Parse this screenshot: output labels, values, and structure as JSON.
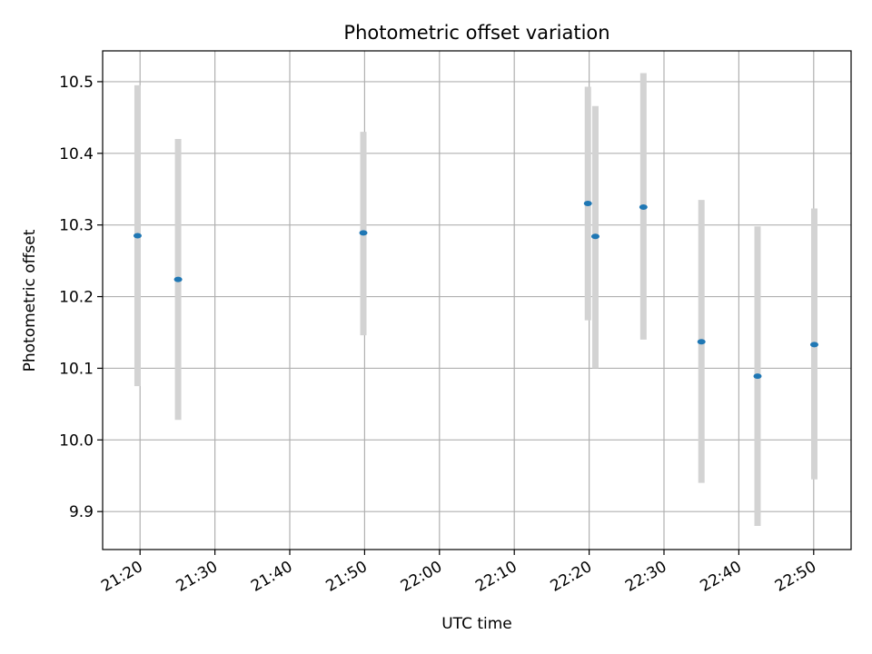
{
  "chart_data": {
    "type": "scatter",
    "title": "Photometric offset variation",
    "xlabel": "UTC time",
    "ylabel": "Photometric offset",
    "x_unit": "UTC time of day (HH:MM)",
    "xlim": [
      "21:15",
      "22:55"
    ],
    "ylim": [
      9.847,
      10.543
    ],
    "x_ticks": [
      "21:20",
      "21:30",
      "21:40",
      "21:50",
      "22:00",
      "22:10",
      "22:20",
      "22:30",
      "22:40",
      "22:50"
    ],
    "y_ticks": [
      9.9,
      10.0,
      10.1,
      10.2,
      10.3,
      10.4,
      10.5
    ],
    "grid": true,
    "errorbar_color": "#d3d3d3",
    "marker_color": "#1f77b4",
    "points": [
      {
        "x": "21:19:40",
        "y": 10.285,
        "ylow": 10.075,
        "yhigh": 10.495
      },
      {
        "x": "21:25:05",
        "y": 10.224,
        "ylow": 10.028,
        "yhigh": 10.42
      },
      {
        "x": "21:49:50",
        "y": 10.289,
        "ylow": 10.146,
        "yhigh": 10.43
      },
      {
        "x": "22:19:50",
        "y": 10.33,
        "ylow": 10.167,
        "yhigh": 10.493
      },
      {
        "x": "22:20:50",
        "y": 10.284,
        "ylow": 10.1,
        "yhigh": 10.466
      },
      {
        "x": "22:27:15",
        "y": 10.325,
        "ylow": 10.14,
        "yhigh": 10.512
      },
      {
        "x": "22:35:00",
        "y": 10.137,
        "ylow": 9.94,
        "yhigh": 10.335
      },
      {
        "x": "22:42:30",
        "y": 10.089,
        "ylow": 9.88,
        "yhigh": 10.298
      },
      {
        "x": "22:50:05",
        "y": 10.133,
        "ylow": 9.945,
        "yhigh": 10.323
      }
    ]
  }
}
